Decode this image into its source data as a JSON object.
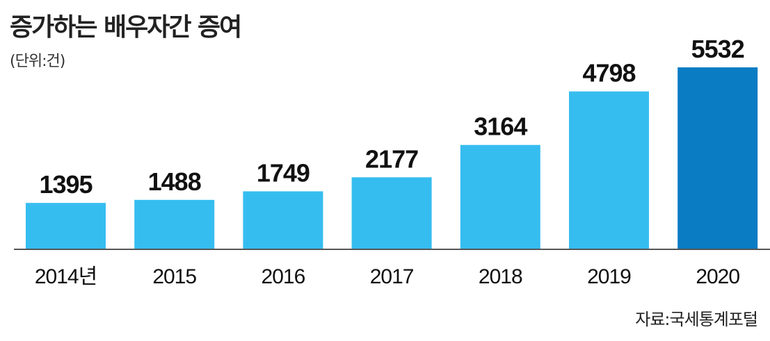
{
  "title": "증가하는 배우자간 증여",
  "unit_label": "(단위:건)",
  "source": "자료:국세통계포털",
  "colors": {
    "bar": "#36bdf0",
    "bar_highlight": "#0a7cc4",
    "axis": "#555555"
  },
  "chart_data": {
    "type": "bar",
    "categories": [
      "2014년",
      "2015",
      "2016",
      "2017",
      "2018",
      "2019",
      "2020"
    ],
    "values": [
      1395,
      1488,
      1749,
      2177,
      3164,
      4798,
      5532
    ],
    "value_labels": [
      "1395",
      "1488",
      "1749",
      "2177",
      "3164",
      "4798",
      "5532"
    ],
    "highlight_index": 6,
    "title": "증가하는 배우자간 증여",
    "xlabel": "",
    "ylabel": "",
    "ylim": [
      0,
      5532
    ],
    "grid": false,
    "legend": "none"
  }
}
